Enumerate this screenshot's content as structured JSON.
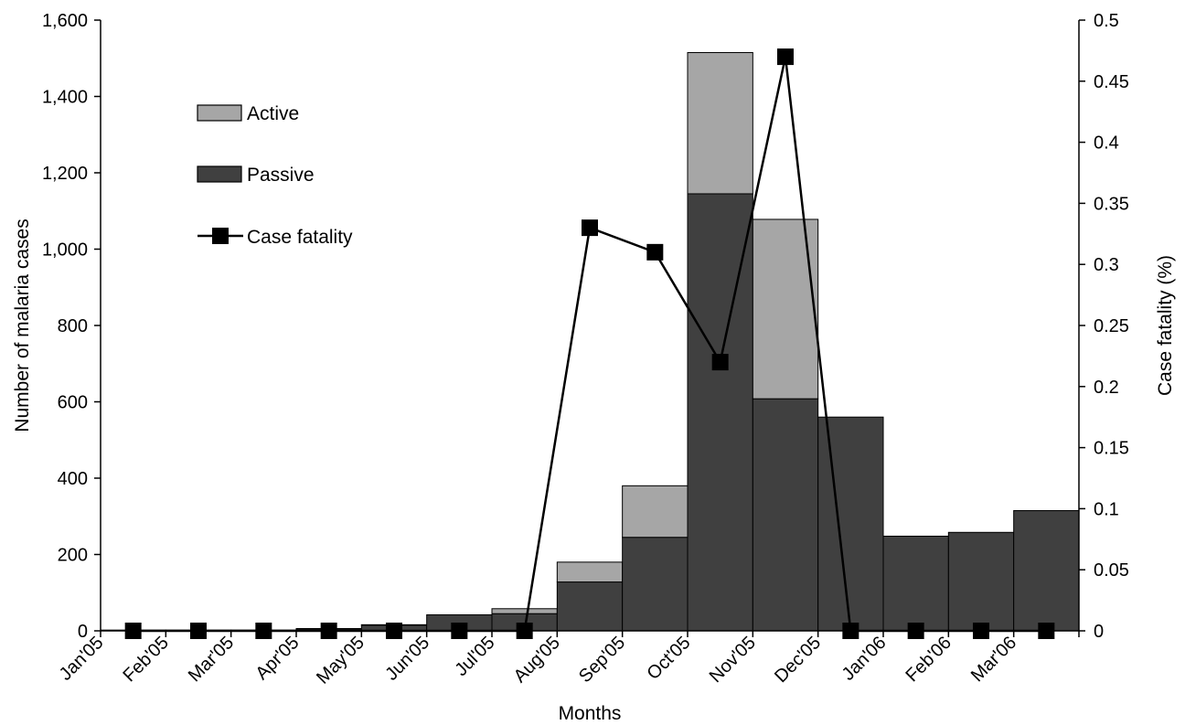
{
  "chart_data": {
    "type": "bar",
    "stacked": true,
    "categories": [
      "Jan'05",
      "Feb'05",
      "Mar'05",
      "Apr'05",
      "May'05",
      "Jun'05",
      "Jul'05",
      "Aug'05",
      "Sep'05",
      "Oct'05",
      "Nov'05",
      "Dec'05",
      "Jan'06",
      "Feb'06",
      "Mar'06"
    ],
    "series": [
      {
        "name": "Passive",
        "kind": "bar",
        "color": "#404040",
        "values": [
          2,
          2,
          2,
          5,
          15,
          42,
          45,
          128,
          245,
          1145,
          608,
          560,
          248,
          258,
          315
        ]
      },
      {
        "name": "Active",
        "kind": "bar",
        "color": "#a6a6a6",
        "values": [
          0,
          0,
          0,
          1,
          1,
          0,
          13,
          52,
          135,
          370,
          470,
          0,
          0,
          0,
          0
        ]
      },
      {
        "name": "Case fatality",
        "kind": "line",
        "axis": "right",
        "color": "#000000",
        "values": [
          0,
          0,
          0,
          0,
          0,
          0,
          0,
          0.33,
          0.31,
          0.22,
          0.47,
          0,
          0,
          0,
          0
        ]
      }
    ],
    "title": "",
    "xlabel": "Months",
    "ylabel": "Number of malaria cases",
    "y2label": "Case fatality  (%)",
    "ylim": [
      0,
      1600
    ],
    "yticks": [
      "0",
      "200",
      "400",
      "600",
      "800",
      "1,000",
      "1,200",
      "1,400",
      "1,600"
    ],
    "y2lim": [
      0,
      0.5
    ],
    "y2ticks": [
      "0",
      "0.05",
      "0.1",
      "0.15",
      "0.2",
      "0.25",
      "0.3",
      "0.35",
      "0.4",
      "0.45",
      "0.5"
    ],
    "grid": false,
    "legend_position": "top-left",
    "legend": [
      "Active",
      "Passive",
      "Case fatality"
    ]
  }
}
